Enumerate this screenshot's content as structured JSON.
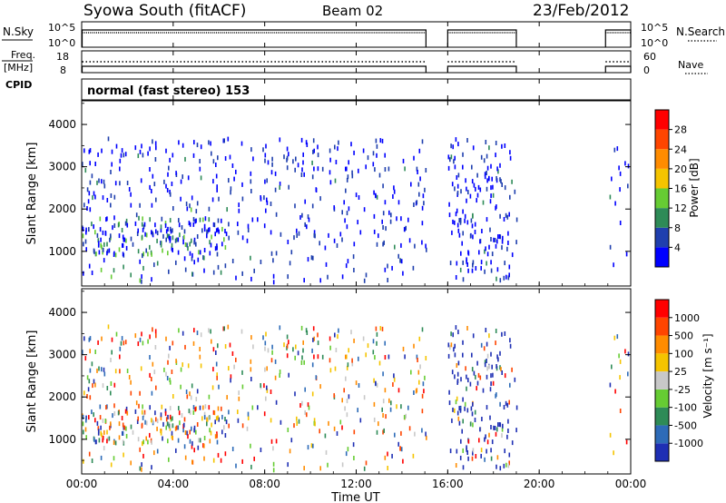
{
  "header": {
    "station": "Syowa South (fitACF)",
    "beam": "Beam 02",
    "date": "23/Feb/2012"
  },
  "panels": {
    "nsky": {
      "label": "N.Sky",
      "yticks": [
        "10^5",
        "10^0"
      ],
      "right_label": "N.Search",
      "right_ticks": [
        "10^5",
        "10^0"
      ]
    },
    "freq": {
      "label_line1": "Freq.",
      "label_line2": "[MHz]",
      "yticks": [
        "18",
        "8"
      ],
      "right_label": "Nave",
      "right_ticks": [
        "60",
        "0"
      ]
    },
    "cpid": {
      "label": "CPID",
      "program": "normal (fast stereo) 153"
    }
  },
  "chart_data": [
    {
      "type": "heatmap",
      "parameter": "power",
      "ylabel": "Slant Range [km]",
      "ylim": [
        180,
        4560
      ],
      "yticks": [
        "1000",
        "2000",
        "3000",
        "4000"
      ],
      "xlim_hours": [
        0,
        24
      ],
      "x_ticks": [
        "00:00",
        "04:00",
        "08:00",
        "12:00",
        "16:00",
        "20:00",
        "00:00"
      ],
      "colorbar": {
        "title": "Power [dB]",
        "ticks": [
          "28",
          "24",
          "20",
          "16",
          "12",
          "8",
          "4"
        ],
        "colors": [
          "#0000ff",
          "#1f3fae",
          "#2e8b57",
          "#66cc33",
          "#f5c400",
          "#ff8c00",
          "#ff4500",
          "#ff0000"
        ]
      },
      "data_gaps_hours": [
        [
          15.05,
          16.0
        ],
        [
          19.0,
          22.9
        ]
      ]
    },
    {
      "type": "heatmap",
      "parameter": "velocity",
      "ylabel": "Slant Range [km]",
      "ylim": [
        180,
        4560
      ],
      "yticks": [
        "1000",
        "2000",
        "3000",
        "4000"
      ],
      "xlim_hours": [
        0,
        24
      ],
      "x_ticks": [
        "00:00",
        "04:00",
        "08:00",
        "12:00",
        "16:00",
        "20:00",
        "00:00"
      ],
      "xlabel": "Time UT",
      "colorbar": {
        "title": "Velocity [m s⁻¹]",
        "ticks": [
          "1000",
          "500",
          "100",
          "25",
          "-25",
          "-100",
          "-500",
          "-1000"
        ],
        "colors": [
          "#1e2fb4",
          "#2d6bb8",
          "#2e8b57",
          "#66cc33",
          "#c8c8c8",
          "#f5c400",
          "#ff8c00",
          "#ff4500",
          "#ff0000"
        ]
      },
      "data_gaps_hours": [
        [
          15.05,
          16.0
        ],
        [
          19.0,
          22.9
        ]
      ]
    }
  ]
}
